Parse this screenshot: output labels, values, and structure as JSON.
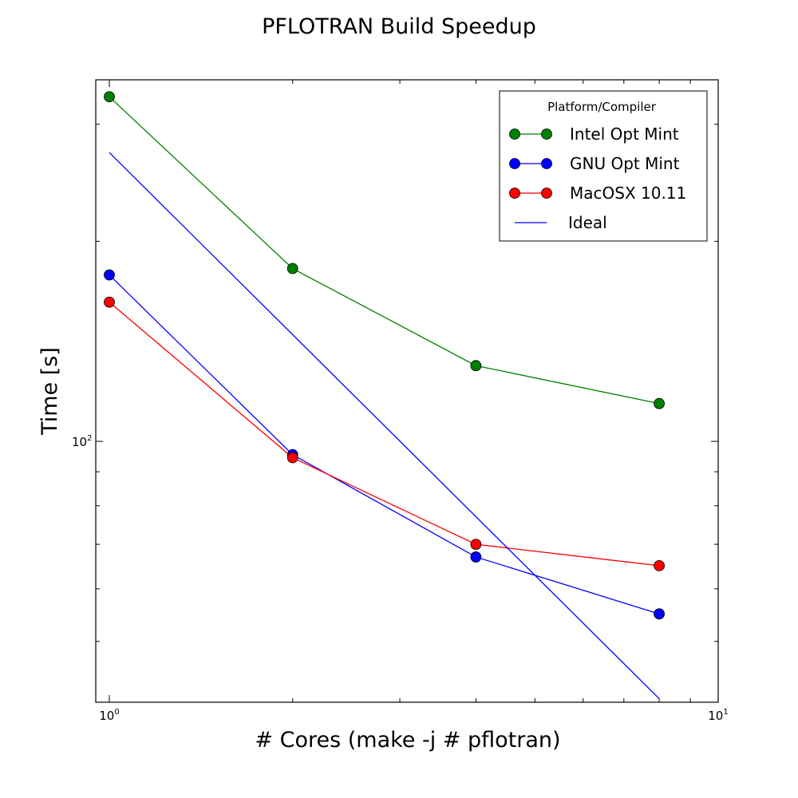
{
  "chart_data": {
    "type": "line",
    "title": "PFLOTRAN Build Speedup",
    "xlabel": "# Cores (make -j # pflotran)",
    "ylabel": "Time [s]",
    "xscale": "log",
    "yscale": "log",
    "xlim": [
      0.95,
      10
    ],
    "ylim": [
      40.5,
      350
    ],
    "x_ticks": [
      {
        "value": 1,
        "base": "10",
        "exp": "0"
      },
      {
        "value": 10,
        "base": "10",
        "exp": "1"
      }
    ],
    "y_ticks": [
      {
        "value": 100,
        "base": "10",
        "exp": "2"
      }
    ],
    "grid": false,
    "legend": {
      "title": "Platform/Compiler",
      "position": "top-right"
    },
    "series": [
      {
        "name": "Intel Opt Mint",
        "color": "#008000",
        "marker": "circle",
        "x": [
          1,
          2,
          4,
          8
        ],
        "y": [
          330,
          182,
          130,
          114
        ]
      },
      {
        "name": "GNU Opt Mint",
        "color": "#0000ff",
        "marker": "circle",
        "x": [
          1,
          2,
          4,
          8
        ],
        "y": [
          178,
          95.5,
          67,
          55
        ]
      },
      {
        "name": "MacOSX 10.11",
        "color": "#ff0000",
        "marker": "circle",
        "x": [
          1,
          2,
          4,
          8
        ],
        "y": [
          162,
          94.5,
          70,
          65
        ]
      },
      {
        "name": "Ideal",
        "color": "#0000ff",
        "marker": "none",
        "x": [
          1,
          8
        ],
        "y": [
          272,
          41
        ]
      }
    ]
  }
}
